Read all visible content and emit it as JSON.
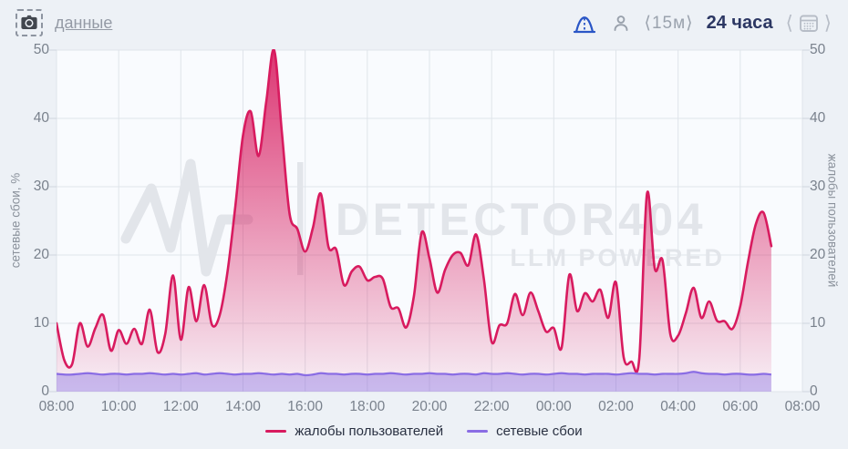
{
  "header": {
    "data_link_label": "данные",
    "interval_label": "⟨15м⟩",
    "range_label": "24 часа"
  },
  "watermark": {
    "title": "DETECTOR404",
    "subtitle": "LLM POWERED"
  },
  "colors": {
    "complaints_line": "#d81b5f",
    "failures_line": "#8a6de4",
    "accent_blue": "#2a56c6",
    "grid": "#dfe4ea",
    "plot_bg": "#f9fbfe",
    "page_bg": "#edf1f6",
    "watermark_gray": "#e2e5ea"
  },
  "chart_data": {
    "type": "area",
    "x_hours_span": 24,
    "interval_minutes": 15,
    "x_tick_labels": [
      "08:00",
      "10:00",
      "12:00",
      "14:00",
      "16:00",
      "18:00",
      "20:00",
      "22:00",
      "00:00",
      "02:00",
      "04:00",
      "06:00",
      "08:00"
    ],
    "left_axis": {
      "title": "сетевые сбои, %",
      "min": 0,
      "max": 50,
      "ticks": [
        0,
        10,
        20,
        30,
        40,
        50
      ]
    },
    "right_axis": {
      "title": "жалобы пользователей",
      "min": 0,
      "max": 50,
      "ticks": [
        0,
        10,
        20,
        30,
        40,
        50
      ]
    },
    "grid": true,
    "legend_position": "bottom",
    "times": [
      "08:00",
      "08:15",
      "08:30",
      "08:45",
      "09:00",
      "09:15",
      "09:30",
      "09:45",
      "10:00",
      "10:15",
      "10:30",
      "10:45",
      "11:00",
      "11:15",
      "11:30",
      "11:45",
      "12:00",
      "12:15",
      "12:30",
      "12:45",
      "13:00",
      "13:15",
      "13:30",
      "13:45",
      "14:00",
      "14:15",
      "14:30",
      "14:45",
      "15:00",
      "15:15",
      "15:30",
      "15:45",
      "16:00",
      "16:15",
      "16:30",
      "16:45",
      "17:00",
      "17:15",
      "17:30",
      "17:45",
      "18:00",
      "18:15",
      "18:30",
      "18:45",
      "19:00",
      "19:15",
      "19:30",
      "19:45",
      "20:00",
      "20:15",
      "20:30",
      "20:45",
      "21:00",
      "21:15",
      "21:30",
      "21:45",
      "22:00",
      "22:15",
      "22:30",
      "22:45",
      "23:00",
      "23:15",
      "23:30",
      "23:45",
      "00:00",
      "00:15",
      "00:30",
      "00:45",
      "01:00",
      "01:15",
      "01:30",
      "01:45",
      "02:00",
      "02:15",
      "02:30",
      "02:45",
      "03:00",
      "03:15",
      "03:30",
      "03:45",
      "04:00",
      "04:15",
      "04:30",
      "04:45",
      "05:00",
      "05:15",
      "05:30",
      "05:45",
      "06:00",
      "06:15",
      "06:30",
      "06:45",
      "07:00"
    ],
    "series": [
      {
        "name": "жалобы пользователей",
        "axis": "right",
        "color": "#d81b5f",
        "fill_top": "rgba(216,27,95,0.88)",
        "fill_bottom": "rgba(216,27,95,0.05)",
        "values": [
          10,
          4.6,
          4,
          10,
          6.6,
          9.3,
          11.2,
          6,
          9,
          7,
          9.2,
          7,
          12,
          5.8,
          8.5,
          17,
          7.6,
          15.3,
          10.3,
          15.6,
          9.8,
          11.2,
          17.5,
          27,
          37.5,
          41,
          34.5,
          42.5,
          50,
          38,
          26,
          23.8,
          20.5,
          24,
          29,
          21.2,
          20.8,
          15.6,
          17.6,
          18.3,
          16.3,
          16.8,
          16.5,
          12.4,
          12.2,
          9.4,
          14,
          23.3,
          19.5,
          14.5,
          17.8,
          20,
          20.3,
          18.5,
          23,
          16.5,
          7.3,
          9.7,
          10,
          14.3,
          11.2,
          14.5,
          11.8,
          8.8,
          9.3,
          6.4,
          17.1,
          11.8,
          14.4,
          13.2,
          14.9,
          10.8,
          16,
          5,
          4.4,
          4.8,
          29,
          18,
          19.2,
          8.4,
          8.2,
          11.5,
          15.2,
          10.8,
          13.2,
          10.4,
          10.3,
          9.2,
          12.5,
          19,
          24.5,
          26.2,
          21.3
        ]
      },
      {
        "name": "сетевые сбои",
        "axis": "left",
        "color": "#8a6de4",
        "fill": "rgba(132,104,224,0.40)",
        "values": [
          2.6,
          2.5,
          2.5,
          2.6,
          2.7,
          2.6,
          2.5,
          2.6,
          2.6,
          2.5,
          2.6,
          2.6,
          2.7,
          2.6,
          2.5,
          2.6,
          2.5,
          2.6,
          2.7,
          2.5,
          2.6,
          2.7,
          2.6,
          2.5,
          2.6,
          2.6,
          2.7,
          2.6,
          2.5,
          2.6,
          2.5,
          2.6,
          2.4,
          2.5,
          2.7,
          2.6,
          2.6,
          2.5,
          2.6,
          2.6,
          2.5,
          2.6,
          2.6,
          2.7,
          2.6,
          2.5,
          2.6,
          2.6,
          2.7,
          2.6,
          2.6,
          2.5,
          2.6,
          2.6,
          2.5,
          2.7,
          2.6,
          2.6,
          2.7,
          2.6,
          2.5,
          2.6,
          2.6,
          2.5,
          2.6,
          2.7,
          2.6,
          2.6,
          2.5,
          2.6,
          2.6,
          2.6,
          2.5,
          2.6,
          2.7,
          2.6,
          2.6,
          2.5,
          2.6,
          2.6,
          2.6,
          2.7,
          2.9,
          2.7,
          2.6,
          2.6,
          2.5,
          2.6,
          2.6,
          2.5,
          2.5,
          2.6,
          2.5
        ]
      }
    ]
  }
}
